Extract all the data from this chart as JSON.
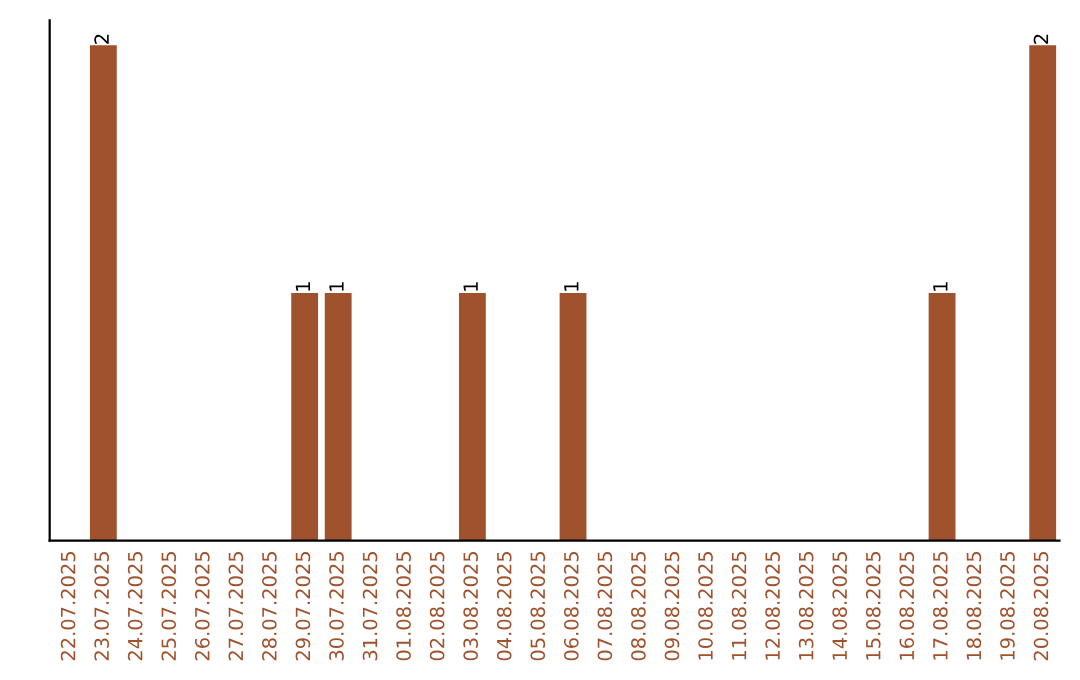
{
  "chart_data": {
    "type": "bar",
    "categories": [
      "22.07.2025",
      "23.07.2025",
      "24.07.2025",
      "25.07.2025",
      "26.07.2025",
      "27.07.2025",
      "28.07.2025",
      "29.07.2025",
      "30.07.2025",
      "31.07.2025",
      "01.08.2025",
      "02.08.2025",
      "03.08.2025",
      "04.08.2025",
      "05.08.2025",
      "06.08.2025",
      "07.08.2025",
      "08.08.2025",
      "09.08.2025",
      "10.08.2025",
      "11.08.2025",
      "12.08.2025",
      "13.08.2025",
      "14.08.2025",
      "15.08.2025",
      "16.08.2025",
      "17.08.2025",
      "18.08.2025",
      "19.08.2025",
      "20.08.2025"
    ],
    "values": [
      0,
      2,
      0,
      0,
      0,
      0,
      0,
      1,
      1,
      0,
      0,
      0,
      1,
      0,
      0,
      1,
      0,
      0,
      0,
      0,
      0,
      0,
      0,
      0,
      0,
      0,
      1,
      0,
      0,
      2
    ],
    "value_labels": [
      null,
      "2",
      null,
      null,
      null,
      null,
      null,
      "1",
      "1",
      null,
      null,
      null,
      "1",
      null,
      null,
      "1",
      null,
      null,
      null,
      null,
      null,
      null,
      null,
      null,
      null,
      null,
      "1",
      null,
      null,
      "2"
    ],
    "color": "#a0522d",
    "tick_labels": "x",
    "grid": false,
    "legend": false
  }
}
